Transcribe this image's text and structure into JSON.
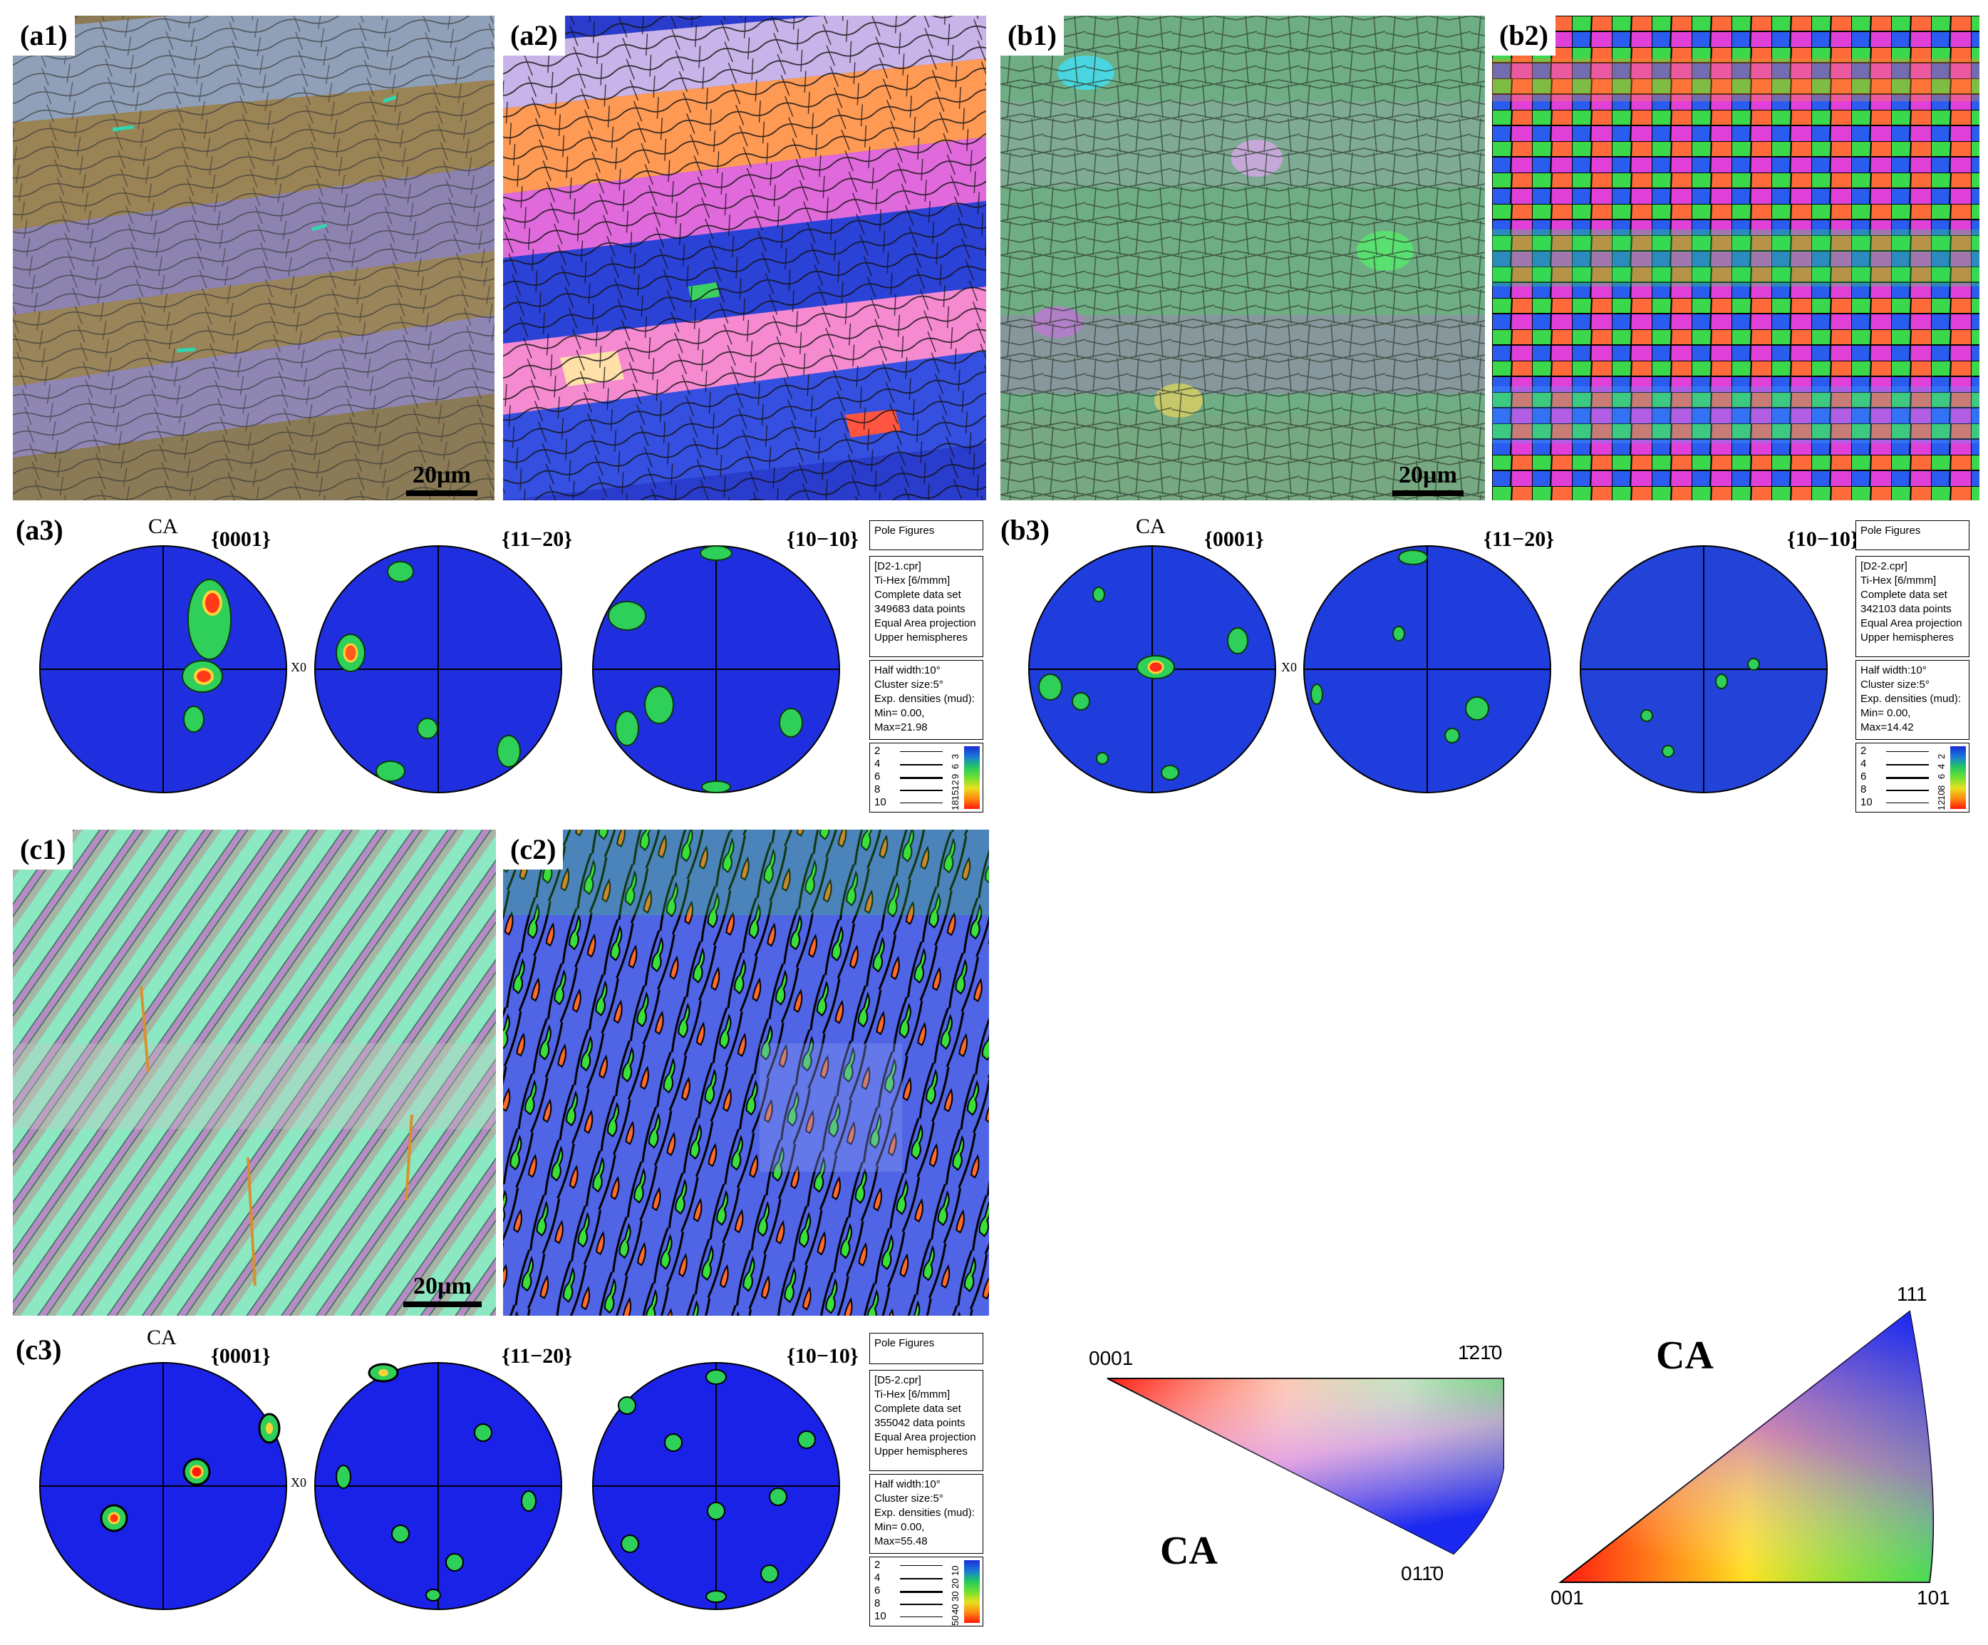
{
  "panels": {
    "a1": {
      "label": "(a1)",
      "scalebar": "20µm"
    },
    "a2": {
      "label": "(a2)"
    },
    "b1": {
      "label": "(b1)",
      "scalebar": "20µm"
    },
    "b2": {
      "label": "(b2)"
    },
    "c1": {
      "label": "(c1)",
      "scalebar": "20µm"
    },
    "c2": {
      "label": "(c2)"
    }
  },
  "pole_figures": {
    "a3": {
      "label": "(a3)",
      "ca": "CA",
      "x0": "X0",
      "titles": [
        "{0001}",
        "{11−20}",
        "{10−10}"
      ],
      "info": {
        "header": "Pole Figures",
        "file": "[D2-1.cpr]",
        "phase": "Ti-Hex [6/mmm]",
        "dataset": "Complete data set",
        "points": "349683 data points",
        "projection": "Equal Area projection",
        "hemisphere": "Upper hemispheres"
      },
      "params": {
        "half_width": "Half width:10°",
        "cluster": "Cluster size:5°",
        "densities": "Exp. densities (mud):",
        "minmax": "Min= 0.00, Max=21.98"
      },
      "levels": [
        "2",
        "4",
        "6",
        "8",
        "10"
      ],
      "cbar_ticks": [
        "3",
        "6",
        "9",
        "12",
        "15",
        "18"
      ]
    },
    "b3": {
      "label": "(b3)",
      "ca": "CA",
      "x0": "X0",
      "titles": [
        "{0001}",
        "{11−20}",
        "{10−10}"
      ],
      "info": {
        "header": "Pole Figures",
        "file": "[D2-2.cpr]",
        "phase": "Ti-Hex [6/mmm]",
        "dataset": "Complete data set",
        "points": "342103 data points",
        "projection": "Equal Area projection",
        "hemisphere": "Upper hemispheres"
      },
      "params": {
        "half_width": "Half width:10°",
        "cluster": "Cluster size:5°",
        "densities": "Exp. densities (mud):",
        "minmax": "Min= 0.00, Max=14.42"
      },
      "levels": [
        "2",
        "4",
        "6",
        "8",
        "10"
      ],
      "cbar_ticks": [
        "2",
        "4",
        "6",
        "8",
        "10",
        "12"
      ]
    },
    "c3": {
      "label": "(c3)",
      "ca": "CA",
      "x0": "X0",
      "titles": [
        "{0001}",
        "{11−20}",
        "{10−10}"
      ],
      "info": {
        "header": "Pole Figures",
        "file": "[D5-2.cpr]",
        "phase": "Ti-Hex [6/mmm]",
        "dataset": "Complete data set",
        "points": "355042 data points",
        "projection": "Equal Area projection",
        "hemisphere": "Upper hemispheres"
      },
      "params": {
        "half_width": "Half width:10°",
        "cluster": "Cluster size:5°",
        "densities": "Exp. densities (mud):",
        "minmax": "Min= 0.00, Max=55.48"
      },
      "levels": [
        "2",
        "4",
        "6",
        "8",
        "10"
      ],
      "cbar_ticks": [
        "10",
        "20",
        "30",
        "40",
        "50"
      ]
    }
  },
  "ipf_hex": {
    "corner_0001": "0001",
    "corner_1210": "1̄21̄0",
    "corner_0110": "011̄0",
    "ca": "CA"
  },
  "ipf_cubic": {
    "corner_111": "111",
    "corner_001": "001",
    "corner_101": "101",
    "ca": "CA"
  }
}
